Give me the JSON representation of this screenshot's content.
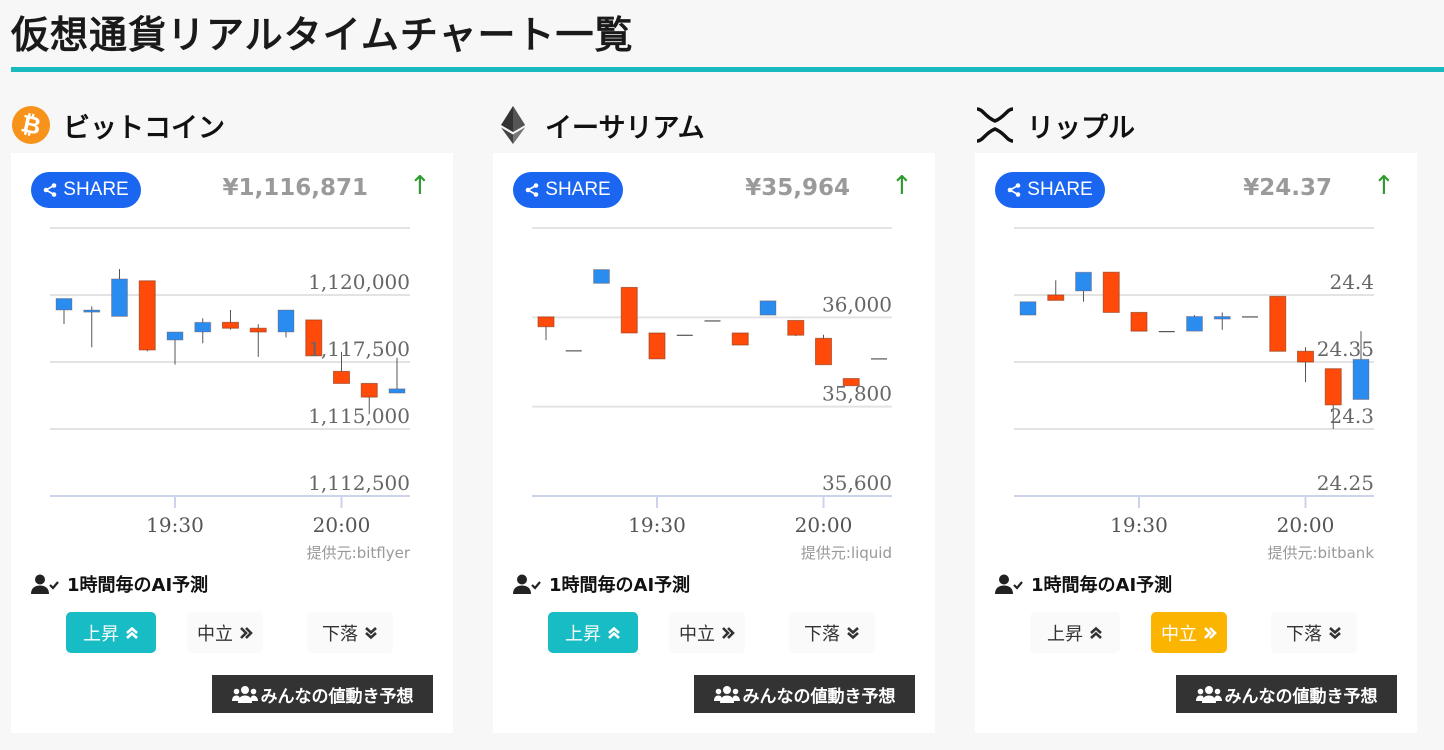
{
  "page": {
    "title": "仮想通貨リアルタイムチャート一覧"
  },
  "coins": [
    {
      "name": "ビットコイン",
      "icon": "bitcoin-icon",
      "share": "SHARE",
      "price": "¥1,116,871",
      "arrow": "↑",
      "source": "提供元:bitflyer",
      "ai_title": "1時間毎のAI予測",
      "pred_up": "上昇",
      "pred_mid": "中立",
      "pred_down": "下落",
      "active": "up",
      "people": "みんなの値動き予想"
    },
    {
      "name": "イーサリアム",
      "icon": "ethereum-icon",
      "share": "SHARE",
      "price": "¥35,964",
      "arrow": "↑",
      "source": "提供元:liquid",
      "ai_title": "1時間毎のAI予測",
      "pred_up": "上昇",
      "pred_mid": "中立",
      "pred_down": "下落",
      "active": "up",
      "people": "みんなの値動き予想"
    },
    {
      "name": "リップル",
      "icon": "ripple-icon",
      "share": "SHARE",
      "price": "¥24.37",
      "arrow": "↑",
      "source": "提供元:bitbank",
      "ai_title": "1時間毎のAI予測",
      "pred_up": "上昇",
      "pred_mid": "中立",
      "pred_down": "下落",
      "active": "mid",
      "people": "みんなの値動き予想"
    }
  ],
  "colors": {
    "accent": "#19b9c0",
    "up_candle": "#2b8cf0",
    "down_candle": "#ff4a0a",
    "share": "#1a66f0",
    "pred_up_active": "#17bcc4",
    "pred_mid_active": "#fbb400",
    "arrow_up": "#2f9a2f"
  },
  "chart_data": [
    {
      "type": "candlestick",
      "ylim": [
        1112500,
        1122500
      ],
      "yticks": [
        1112500,
        1115000,
        1117500,
        1120000
      ],
      "ytick_labels": [
        "1,112,500",
        "1,115,000",
        "1,117,500",
        "1,120,000"
      ],
      "xticks": [
        "19:30",
        "20:00"
      ],
      "grid": true,
      "candles": [
        [
          "19:10",
          1119440,
          1119870,
          1118920,
          1119870
        ],
        [
          "19:15",
          1119360,
          1119570,
          1118050,
          1119440
        ],
        [
          "19:20",
          1119200,
          1120970,
          1119200,
          1120600
        ],
        [
          "19:25",
          1120530,
          1120530,
          1117900,
          1117950
        ],
        [
          "19:30",
          1118320,
          1118620,
          1117400,
          1118620
        ],
        [
          "19:35",
          1118620,
          1119130,
          1118200,
          1118980
        ],
        [
          "19:40",
          1118980,
          1119440,
          1118710,
          1118760
        ],
        [
          "19:45",
          1118760,
          1118910,
          1117690,
          1118620
        ],
        [
          "19:50",
          1118620,
          1119440,
          1118420,
          1119440
        ],
        [
          "19:55",
          1119070,
          1119070,
          1117730,
          1117730
        ],
        [
          "20:00",
          1117150,
          1117880,
          1116700,
          1116700
        ],
        [
          "20:05",
          1116700,
          1116700,
          1115550,
          1116190
        ],
        [
          "20:10",
          1116340,
          1117660,
          1116340,
          1116500
        ]
      ]
    },
    {
      "type": "candlestick",
      "ylim": [
        35600,
        36200
      ],
      "yticks": [
        35600,
        35800,
        36000
      ],
      "ytick_labels": [
        "35,600",
        "35,800",
        "36,000"
      ],
      "xticks": [
        "19:30",
        "20:00"
      ],
      "grid": true,
      "candles": [
        [
          "19:10",
          36001,
          36001,
          35949,
          35979
        ],
        [
          "19:15",
          35926,
          35926,
          35926,
          35926
        ],
        [
          "19:20",
          36076,
          36107,
          36076,
          36107
        ],
        [
          "19:25",
          36067,
          36067,
          35965,
          35965
        ],
        [
          "19:30",
          35965,
          35965,
          35907,
          35907
        ],
        [
          "19:35",
          35961,
          35961,
          35961,
          35961
        ],
        [
          "19:40",
          35993,
          35993,
          35993,
          35993
        ],
        [
          "19:45",
          35965,
          35965,
          35938,
          35938
        ],
        [
          "19:50",
          36005,
          36037,
          36005,
          36037
        ],
        [
          "19:55",
          35993,
          35993,
          35958,
          35960
        ],
        [
          "20:00",
          35953,
          35961,
          35894,
          35894
        ],
        [
          "20:05",
          35863,
          35863,
          35847,
          35847
        ],
        [
          "20:10",
          35908,
          35908,
          35908,
          35908
        ]
      ]
    },
    {
      "type": "candlestick",
      "ylim": [
        24.25,
        24.45
      ],
      "yticks": [
        24.25,
        24.3,
        24.35,
        24.4
      ],
      "ytick_labels": [
        "24.25",
        "24.3",
        "24.35",
        "24.4"
      ],
      "xticks": [
        "19:30",
        "20:00"
      ],
      "grid": true,
      "candles": [
        [
          "19:10",
          24.385,
          24.395,
          24.385,
          24.395
        ],
        [
          "19:15",
          24.4,
          24.411,
          24.396,
          24.396
        ],
        [
          "19:20",
          24.403,
          24.417,
          24.395,
          24.417
        ],
        [
          "19:25",
          24.417,
          24.417,
          24.387,
          24.387
        ],
        [
          "19:30",
          24.387,
          24.387,
          24.373,
          24.373
        ],
        [
          "19:35",
          24.373,
          24.373,
          24.373,
          24.373
        ],
        [
          "19:40",
          24.373,
          24.385,
          24.373,
          24.384
        ],
        [
          "19:45",
          24.382,
          24.387,
          24.374,
          24.384
        ],
        [
          "19:50",
          24.384,
          24.384,
          24.384,
          24.384
        ],
        [
          "19:55",
          24.399,
          24.399,
          24.358,
          24.358
        ],
        [
          "20:00",
          24.358,
          24.361,
          24.335,
          24.35
        ],
        [
          "20:05",
          24.345,
          24.345,
          24.3,
          24.318
        ],
        [
          "20:10",
          24.322,
          24.373,
          24.322,
          24.352
        ]
      ]
    }
  ]
}
